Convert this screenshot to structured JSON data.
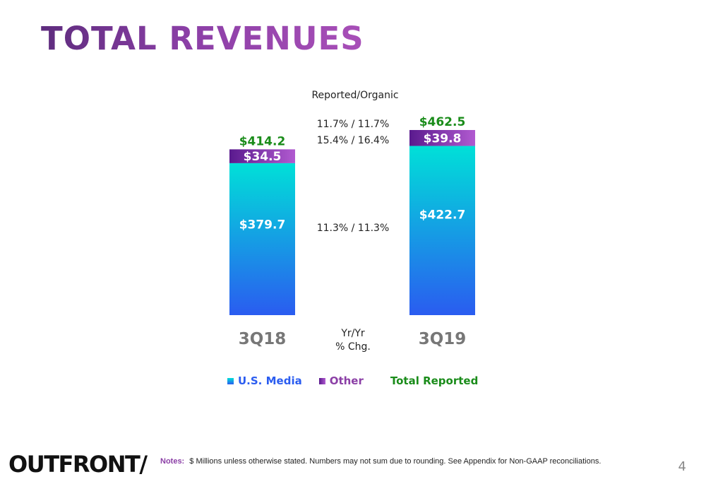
{
  "slide": {
    "title": "TOTAL REVENUES",
    "logo_text": "OUTFRONT/",
    "notes_label": "Notes:",
    "notes_text": "$ Millions unless otherwise stated. Numbers may not sum due to rounding. See Appendix for Non-GAAP reconciliations.",
    "page_number": "4"
  },
  "legend": {
    "us_media": "U.S. Media",
    "other": "Other",
    "total": "Total Reported"
  },
  "colors": {
    "us_media_top": "#00e0d8",
    "us_media_bottom": "#2a5cf0",
    "other_left": "#5a1a8e",
    "other_right": "#b15ad0",
    "total_green": "#1a8c1a",
    "legend_media_text": "#2a5cf0",
    "legend_other_text": "#8b3fa6",
    "category_gray": "#777777"
  },
  "chart_data": {
    "type": "bar",
    "stacked": true,
    "categories": [
      "3Q18",
      "3Q19"
    ],
    "series": [
      {
        "name": "U.S. Media",
        "values": [
          379.7,
          422.7
        ]
      },
      {
        "name": "Other",
        "values": [
          34.5,
          39.8
        ]
      }
    ],
    "totals": [
      414.2,
      462.5
    ],
    "value_labels": {
      "us_media": [
        "$379.7",
        "$422.7"
      ],
      "other": [
        "$34.5",
        "$39.8"
      ],
      "total": [
        "$414.2",
        "$462.5"
      ]
    },
    "change_header": "Reported/Organic",
    "change_total": "11.7% / 11.7%",
    "change_other": "15.4% / 16.4%",
    "change_us_media": "11.3% / 11.3%",
    "change_axis_label": [
      "Yr/Yr",
      "% Chg."
    ],
    "ylim": [
      0,
      462.5
    ]
  }
}
